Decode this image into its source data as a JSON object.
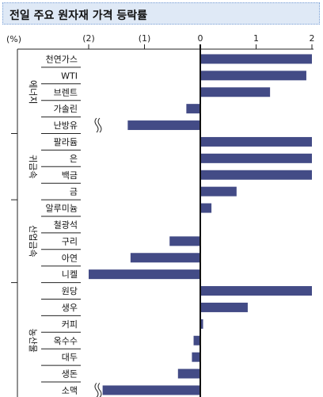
{
  "chart_data": {
    "type": "bar",
    "orientation": "horizontal",
    "title": "전일 주요 원자재 가격 등락률",
    "unit_label": "(%)",
    "xlim": [
      -2,
      2
    ],
    "x_ticks": [
      {
        "value": -2,
        "label": "(2)"
      },
      {
        "value": -1,
        "label": "(1)"
      },
      {
        "value": 0,
        "label": "0"
      },
      {
        "value": 1,
        "label": "1"
      },
      {
        "value": 2,
        "label": "2"
      }
    ],
    "groups": [
      {
        "name": "에너지",
        "items": [
          "천연가스",
          "WTI",
          "브렌트",
          "가솔린",
          "난방유"
        ]
      },
      {
        "name": "귀금속",
        "items": [
          "팔라듐",
          "은",
          "백금",
          "금"
        ]
      },
      {
        "name": "산업금속",
        "items": [
          "알루미늄",
          "철광석",
          "구리",
          "아연",
          "니켈"
        ]
      },
      {
        "name": "농산물",
        "items": [
          "원당",
          "생우",
          "커피",
          "옥수수",
          "대두",
          "생돈",
          "소맥"
        ]
      }
    ],
    "categories": [
      "천연가스",
      "WTI",
      "브렌트",
      "가솔린",
      "난방유",
      "팔라듐",
      "은",
      "백금",
      "금",
      "알루미늄",
      "철광석",
      "구리",
      "아연",
      "니켈",
      "원당",
      "생우",
      "커피",
      "옥수수",
      "대두",
      "생돈",
      "소맥"
    ],
    "values": [
      2.0,
      1.9,
      1.25,
      -0.25,
      -1.3,
      2.0,
      2.0,
      2.0,
      0.65,
      0.2,
      0.0,
      -0.55,
      -1.25,
      -2.0,
      2.0,
      0.85,
      0.05,
      -0.12,
      -0.15,
      -0.4,
      -1.75
    ],
    "axis_break": [
      "난방유",
      "소맥"
    ],
    "bar_color": "#434b86"
  }
}
